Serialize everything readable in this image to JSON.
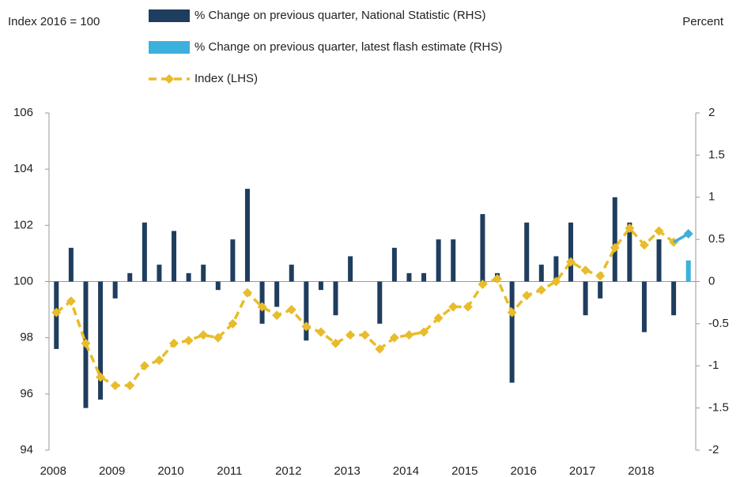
{
  "chart_data": {
    "type": "bar",
    "y_axis_label": "Index 2016 = 100",
    "y2_axis_label": "Percent",
    "categories": [
      "2008",
      null,
      null,
      null,
      "2009",
      null,
      null,
      null,
      "2010",
      null,
      null,
      null,
      "2011",
      null,
      null,
      null,
      "2012",
      null,
      null,
      null,
      "2013",
      null,
      null,
      null,
      "2014",
      null,
      null,
      null,
      "2015",
      null,
      null,
      null,
      "2016",
      null,
      null,
      null,
      "2017",
      null,
      null,
      null,
      "2018",
      null,
      null,
      null
    ],
    "series": [
      {
        "name": "% Change on previous quarter, National Statistic (RHS)",
        "type": "bar",
        "axis": "y2",
        "color": "#1f3d5e",
        "values": [
          -0.8,
          0.4,
          -1.5,
          -1.4,
          -0.2,
          0.1,
          0.7,
          0.2,
          0.6,
          0.1,
          0.2,
          -0.1,
          0.5,
          1.1,
          -0.5,
          -0.3,
          0.2,
          -0.7,
          -0.1,
          -0.4,
          0.3,
          0,
          -0.5,
          0.4,
          0.1,
          0.1,
          0.5,
          0.5,
          0,
          0.8,
          0.1,
          -1.2,
          0.7,
          0.2,
          0.3,
          0.7,
          -0.4,
          -0.2,
          1.0,
          0.7,
          -0.6,
          0.5,
          -0.4,
          null
        ]
      },
      {
        "name": "% Change on previous quarter, latest flash estimate (RHS)",
        "type": "bar",
        "axis": "y2",
        "color": "#3cb0dc",
        "values": [
          null,
          null,
          null,
          null,
          null,
          null,
          null,
          null,
          null,
          null,
          null,
          null,
          null,
          null,
          null,
          null,
          null,
          null,
          null,
          null,
          null,
          null,
          null,
          null,
          null,
          null,
          null,
          null,
          null,
          null,
          null,
          null,
          null,
          null,
          null,
          null,
          null,
          null,
          null,
          null,
          null,
          null,
          null,
          0.25
        ]
      },
      {
        "name": "Index (LHS)",
        "type": "line",
        "axis": "y",
        "color": "#e8bc2a",
        "values": [
          98.9,
          99.3,
          97.8,
          96.6,
          96.3,
          96.3,
          97.0,
          97.2,
          97.8,
          97.9,
          98.1,
          98.0,
          98.5,
          99.6,
          99.1,
          98.8,
          99.0,
          98.4,
          98.2,
          97.8,
          98.1,
          98.1,
          97.6,
          98.0,
          98.1,
          98.2,
          98.7,
          99.1,
          99.1,
          99.9,
          100.1,
          98.9,
          99.5,
          99.7,
          100.0,
          100.7,
          100.4,
          100.2,
          101.2,
          101.9,
          101.3,
          101.8,
          101.4,
          101.7
        ]
      }
    ],
    "ylim": [
      94,
      106
    ],
    "yticks": [
      94,
      96,
      98,
      100,
      102,
      104,
      106
    ],
    "y2lim": [
      -2,
      2
    ],
    "y2ticks": [
      -2,
      -1.5,
      -1,
      -0.5,
      0,
      0.5,
      1,
      1.5,
      2
    ]
  }
}
